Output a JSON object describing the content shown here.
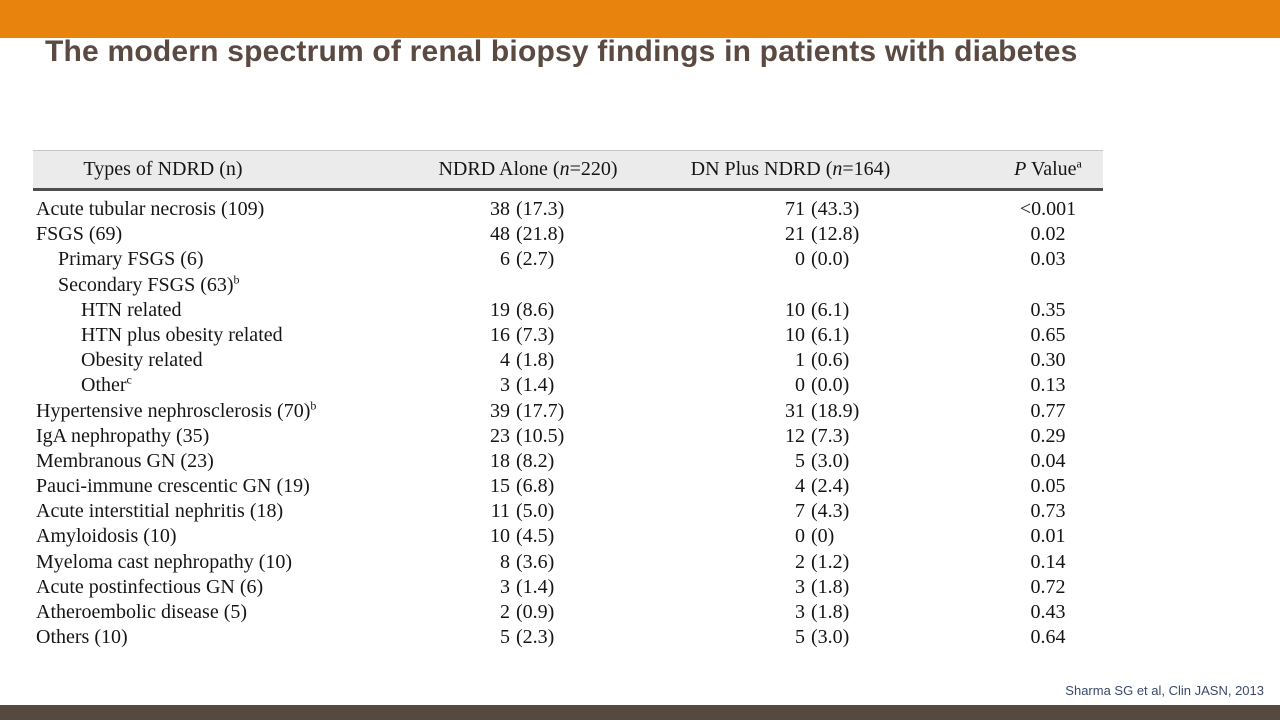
{
  "title": "The modern spectrum of renal biopsy findings in patients with diabetes",
  "citation": "Sharma SG et al, Clin JASN, 2013",
  "colors": {
    "top_bar_orange": "#E8830E",
    "title_brown": "#5A4A42",
    "bottom_bar_brown": "#56493F",
    "citation_navy": "#3A4A6B",
    "table_header_bg": "#EBEBEB",
    "table_header_rule": "#4E4E4E"
  },
  "table": {
    "columns": [
      {
        "id": "types-of-ndrd",
        "pre": "Types of NDRD (n)",
        "italic": "",
        "post": "",
        "sup": ""
      },
      {
        "id": "ndrd-alone",
        "pre": "NDRD Alone (",
        "italic": "n",
        "post": "=220)",
        "sup": ""
      },
      {
        "id": "dn-plus-ndrd",
        "pre": "DN Plus NDRD (",
        "italic": "n",
        "post": "=164)",
        "sup": ""
      },
      {
        "id": "p-value",
        "pre": "",
        "italic": "P",
        "post": " Value",
        "sup": "a"
      }
    ],
    "rows": [
      {
        "label": "Acute tubular necrosis (109)",
        "sup": "",
        "indent": 0,
        "ndrd_alone": {
          "n": "38",
          "pct": "(17.3)"
        },
        "dn_plus": {
          "n": "71",
          "pct": "(43.3)"
        },
        "p": "<0.001"
      },
      {
        "label": "FSGS (69)",
        "sup": "",
        "indent": 0,
        "ndrd_alone": {
          "n": "48",
          "pct": "(21.8)"
        },
        "dn_plus": {
          "n": "21",
          "pct": "(12.8)"
        },
        "p": "0.02"
      },
      {
        "label": "Primary FSGS (6)",
        "sup": "",
        "indent": 1,
        "ndrd_alone": {
          "n": "6",
          "pct": "(2.7)"
        },
        "dn_plus": {
          "n": "0",
          "pct": "(0.0)"
        },
        "p": "0.03"
      },
      {
        "label": "Secondary FSGS (63)",
        "sup": "b",
        "indent": 1,
        "ndrd_alone": null,
        "dn_plus": null,
        "p": ""
      },
      {
        "label": "HTN related",
        "sup": "",
        "indent": 2,
        "ndrd_alone": {
          "n": "19",
          "pct": "(8.6)"
        },
        "dn_plus": {
          "n": "10",
          "pct": "(6.1)"
        },
        "p": "0.35"
      },
      {
        "label": "HTN plus obesity related",
        "sup": "",
        "indent": 2,
        "ndrd_alone": {
          "n": "16",
          "pct": "(7.3)"
        },
        "dn_plus": {
          "n": "10",
          "pct": "(6.1)"
        },
        "p": "0.65"
      },
      {
        "label": "Obesity related",
        "sup": "",
        "indent": 2,
        "ndrd_alone": {
          "n": "4",
          "pct": "(1.8)"
        },
        "dn_plus": {
          "n": "1",
          "pct": "(0.6)"
        },
        "p": "0.30"
      },
      {
        "label": "Other",
        "sup": "c",
        "indent": 2,
        "ndrd_alone": {
          "n": "3",
          "pct": "(1.4)"
        },
        "dn_plus": {
          "n": "0",
          "pct": "(0.0)"
        },
        "p": "0.13"
      },
      {
        "label": "Hypertensive nephrosclerosis (70)",
        "sup": "b",
        "indent": 0,
        "ndrd_alone": {
          "n": "39",
          "pct": "(17.7)"
        },
        "dn_plus": {
          "n": "31",
          "pct": "(18.9)"
        },
        "p": "0.77"
      },
      {
        "label": "IgA nephropathy (35)",
        "sup": "",
        "indent": 0,
        "ndrd_alone": {
          "n": "23",
          "pct": "(10.5)"
        },
        "dn_plus": {
          "n": "12",
          "pct": "(7.3)"
        },
        "p": "0.29"
      },
      {
        "label": "Membranous GN (23)",
        "sup": "",
        "indent": 0,
        "ndrd_alone": {
          "n": "18",
          "pct": "(8.2)"
        },
        "dn_plus": {
          "n": "5",
          "pct": "(3.0)"
        },
        "p": "0.04"
      },
      {
        "label": "Pauci-immune crescentic GN (19)",
        "sup": "",
        "indent": 0,
        "ndrd_alone": {
          "n": "15",
          "pct": "(6.8)"
        },
        "dn_plus": {
          "n": "4",
          "pct": "(2.4)"
        },
        "p": "0.05"
      },
      {
        "label": "Acute interstitial nephritis (18)",
        "sup": "",
        "indent": 0,
        "ndrd_alone": {
          "n": "11",
          "pct": "(5.0)"
        },
        "dn_plus": {
          "n": "7",
          "pct": "(4.3)"
        },
        "p": "0.73"
      },
      {
        "label": "Amyloidosis (10)",
        "sup": "",
        "indent": 0,
        "ndrd_alone": {
          "n": "10",
          "pct": "(4.5)"
        },
        "dn_plus": {
          "n": "0",
          "pct": "(0)"
        },
        "p": "0.01"
      },
      {
        "label": "Myeloma cast nephropathy (10)",
        "sup": "",
        "indent": 0,
        "ndrd_alone": {
          "n": "8",
          "pct": "(3.6)"
        },
        "dn_plus": {
          "n": "2",
          "pct": "(1.2)"
        },
        "p": "0.14"
      },
      {
        "label": "Acute postinfectious GN (6)",
        "sup": "",
        "indent": 0,
        "ndrd_alone": {
          "n": "3",
          "pct": "(1.4)"
        },
        "dn_plus": {
          "n": "3",
          "pct": "(1.8)"
        },
        "p": "0.72"
      },
      {
        "label": "Atheroembolic disease (5)",
        "sup": "",
        "indent": 0,
        "ndrd_alone": {
          "n": "2",
          "pct": "(0.9)"
        },
        "dn_plus": {
          "n": "3",
          "pct": "(1.8)"
        },
        "p": "0.43"
      },
      {
        "label": "Others (10)",
        "sup": "",
        "indent": 0,
        "ndrd_alone": {
          "n": "5",
          "pct": "(2.3)"
        },
        "dn_plus": {
          "n": "5",
          "pct": "(3.0)"
        },
        "p": "0.64"
      }
    ]
  }
}
